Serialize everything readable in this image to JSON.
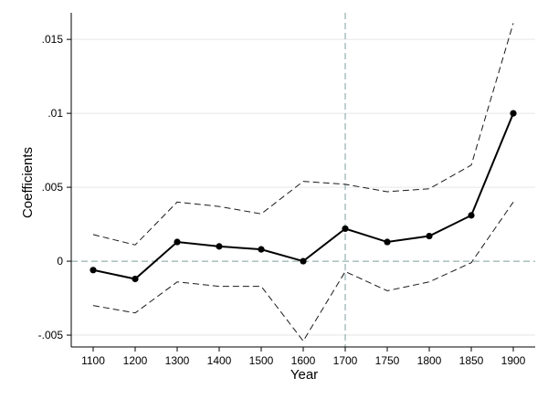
{
  "chart_data": {
    "type": "line",
    "title": "",
    "xlabel": "Year",
    "ylabel": "Coefficients",
    "categories": [
      "1100",
      "1200",
      "1300",
      "1400",
      "1500",
      "1600",
      "1700",
      "1750",
      "1800",
      "1850",
      "1900"
    ],
    "ylim": [
      -0.0058,
      0.0168
    ],
    "yticks": [
      -0.005,
      0,
      0.005,
      0.01,
      0.015
    ],
    "ytick_labels": [
      "-.005",
      "0",
      ".005",
      ".01",
      ".015"
    ],
    "series": [
      {
        "role": "coefficient",
        "style": "solid-with-markers",
        "values": [
          -0.0006,
          -0.0012,
          0.0013,
          0.001,
          0.0008,
          0.0,
          0.0022,
          0.0013,
          0.0017,
          0.0031,
          0.01
        ]
      },
      {
        "role": "upper-bound",
        "style": "dashed",
        "values": [
          0.0018,
          0.0011,
          0.004,
          0.0037,
          0.0032,
          0.0054,
          0.0052,
          0.0047,
          0.0049,
          0.0065,
          0.0161
        ]
      },
      {
        "role": "lower-bound",
        "style": "dashed",
        "values": [
          -0.003,
          -0.0035,
          -0.0014,
          -0.0017,
          -0.0017,
          -0.0054,
          -0.0007,
          -0.002,
          -0.0014,
          -0.0001,
          0.004
        ]
      }
    ],
    "reference_lines": {
      "horizontal_y": 0,
      "vertical_x": "1700"
    },
    "grid": true,
    "legend": "none",
    "colors": {
      "coefficient": "#000000",
      "bounds": "#1a1a1a",
      "reference": "#7f9f9f",
      "grid": "#e6e6e6"
    }
  }
}
